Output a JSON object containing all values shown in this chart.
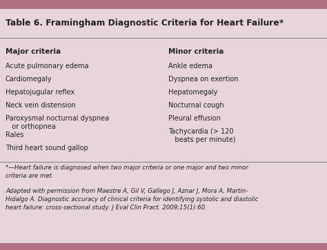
{
  "title": "Table 6. Framingham Diagnostic Criteria for Heart Failure*",
  "bg_color": "#e8d4db",
  "title_bg_color": "#c9a0b0",
  "top_bar_color": "#b07080",
  "major_header": "Major criteria",
  "minor_header": "Minor criteria",
  "major_criteria": [
    "Acute pulmonary edema",
    "Cardiomegaly",
    "Hepatojugular reflex",
    "Neck vein distension",
    "Paroxysmal nocturnal dyspnea\n   or orthopnea",
    "Rales",
    "Third heart sound gallop"
  ],
  "minor_criteria": [
    "Ankle edema",
    "Dyspnea on exertion",
    "Hepatomegaly",
    "Nocturnal cough",
    "Pleural effusion",
    "Tachycardia (> 120\n   beats per minute)"
  ],
  "footnote1": "*—Heart failure is diagnosed when two major criteria or one major and two minor\ncriteria are met.",
  "footnote2": "Adapted with permission from Maestre A, Gil V, Gallego J, Aznar J, Mora A, Martin-\nHidalgo A. Diagnostic accuracy of clinical criteria for identifying systolic and diastolic\nheart failure: cross-sectional study. J Eval Clin Pract. 2009;15(1):60.",
  "line_color": "#888888",
  "text_color": "#222222",
  "header_fontsize": 7.5,
  "title_fontsize": 8.8,
  "body_fontsize": 7.0,
  "footnote_fontsize": 6.2
}
